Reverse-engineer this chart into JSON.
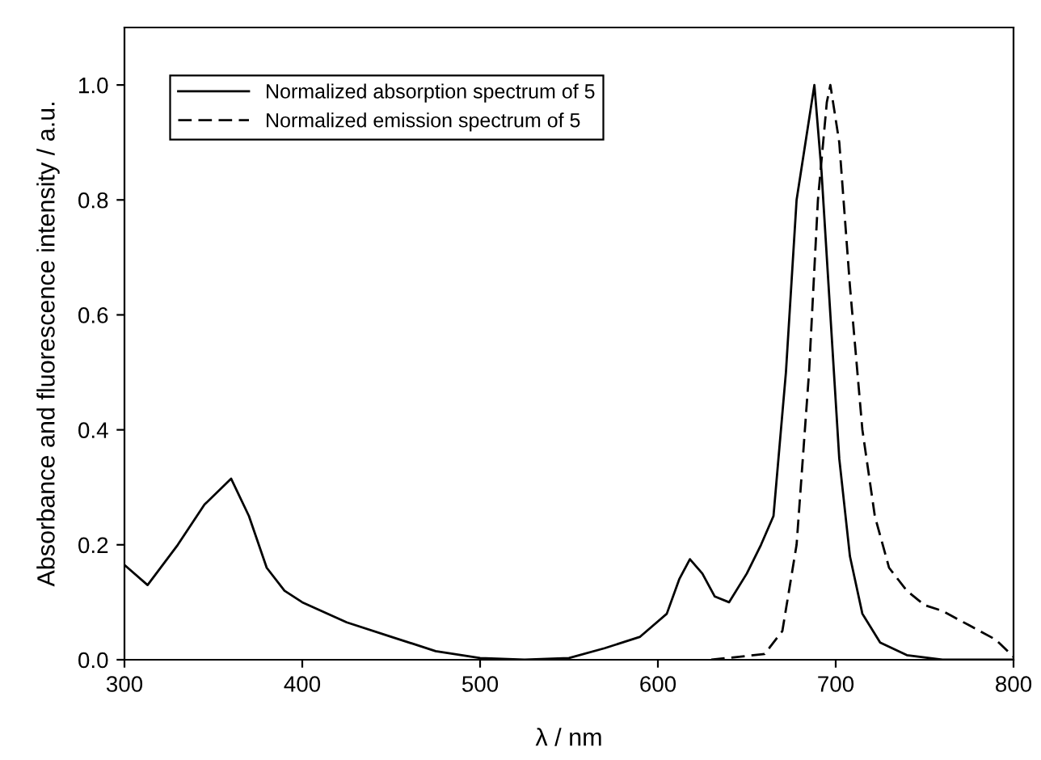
{
  "chart_data": {
    "type": "line",
    "xlabel": "λ / nm",
    "ylabel": "Absorbance and fluorescence intensity / a.u.",
    "xlim": [
      300,
      800
    ],
    "xticks": [
      300,
      400,
      500,
      600,
      700,
      800
    ],
    "ylim": [
      0,
      1.1
    ],
    "yticks": [
      {
        "value": 0,
        "label": "0.0"
      },
      0.2,
      0.4,
      0.6,
      0.8,
      {
        "value": 1,
        "label": "1.0"
      }
    ],
    "grid": false,
    "legend": "top left",
    "marker": "none",
    "series": [
      {
        "name": "Normalized absorption spectrum of 5",
        "color": "#000000",
        "line_style": "solid",
        "x": [
          300,
          313,
          330,
          345,
          360,
          370,
          380,
          390,
          400,
          425,
          450,
          475,
          500,
          525,
          550,
          570,
          590,
          605,
          612,
          618,
          625,
          632,
          640,
          650,
          658,
          665,
          672,
          678,
          683,
          688,
          692,
          697,
          702,
          708,
          715,
          725,
          740,
          760,
          800
        ],
        "values": [
          0.165,
          0.13,
          0.2,
          0.27,
          0.315,
          0.25,
          0.16,
          0.12,
          0.1,
          0.065,
          0.04,
          0.015,
          0.003,
          0,
          0.003,
          0.02,
          0.04,
          0.08,
          0.14,
          0.175,
          0.15,
          0.11,
          0.1,
          0.15,
          0.2,
          0.25,
          0.5,
          0.8,
          0.9,
          1.0,
          0.85,
          0.6,
          0.35,
          0.18,
          0.08,
          0.03,
          0.008,
          0,
          0
        ]
      },
      {
        "name": "Normalized emission spectrum of 5",
        "color": "#000000",
        "line_style": "dashed",
        "x": [
          630,
          660,
          670,
          678,
          685,
          690,
          695,
          697,
          702,
          708,
          715,
          722,
          730,
          740,
          750,
          760,
          775,
          790,
          800
        ],
        "values": [
          0,
          0.01,
          0.05,
          0.2,
          0.5,
          0.8,
          0.97,
          1.0,
          0.9,
          0.65,
          0.4,
          0.25,
          0.16,
          0.12,
          0.095,
          0.085,
          0.06,
          0.035,
          0.005
        ]
      }
    ]
  }
}
